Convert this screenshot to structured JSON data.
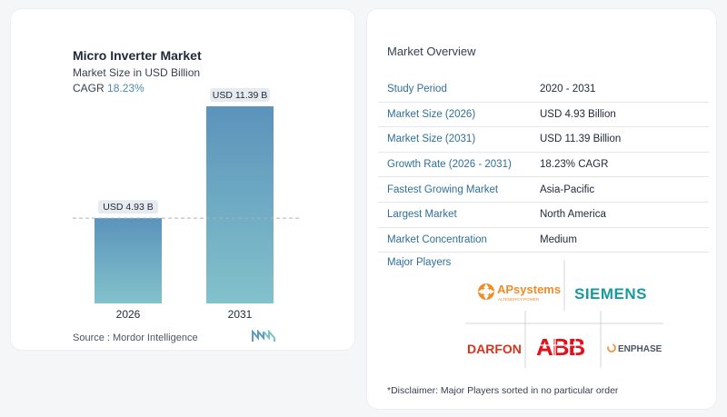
{
  "chart_data": {
    "type": "bar",
    "title": "Micro Inverter Market",
    "subtitle": "Market Size in USD Billion",
    "cagr_label": "CAGR",
    "cagr_value": "18.23%",
    "categories": [
      "2026",
      "2031"
    ],
    "values": [
      4.93,
      11.39
    ],
    "data_labels": [
      "USD 4.93 B",
      "USD 11.39 B"
    ],
    "colors": {
      "bar_top": "#5b93bb",
      "bar_bottom": "#82c2cb",
      "label_bg": "#e7ebef",
      "dashed_line": "#a9b3bd"
    }
  },
  "source": "Source :  Mordor Intelligence",
  "overview": {
    "title": "Market Overview",
    "rows": [
      {
        "key": "Study Period",
        "value": "2020 - 2031"
      },
      {
        "key": "Market Size (2026)",
        "value": "USD 4.93 Billion"
      },
      {
        "key": "Market Size (2031)",
        "value": "USD 11.39 Billion"
      },
      {
        "key": "Growth Rate (2026 - 2031)",
        "value": "18.23% CAGR"
      },
      {
        "key": "Fastest Growing Market",
        "value": "Asia-Pacific"
      },
      {
        "key": "Largest Market",
        "value": "North America"
      },
      {
        "key": "Market Concentration",
        "value": "Medium"
      }
    ]
  },
  "major_players": {
    "title": "Major Players",
    "logos": [
      {
        "name": "APsystems",
        "tagline": "ALTENERGY POWER"
      },
      {
        "name": "SIEMENS"
      },
      {
        "name": "DARFON"
      },
      {
        "name": "ABB"
      },
      {
        "name": "ENPHASE"
      }
    ]
  },
  "disclaimer": "*Disclaimer: Major Players sorted in no particular order"
}
